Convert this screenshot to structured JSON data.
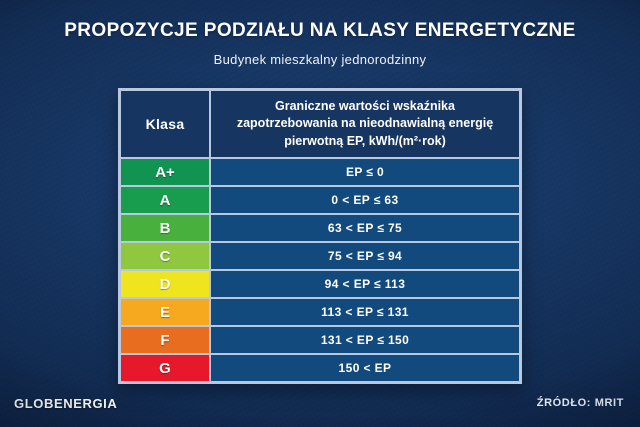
{
  "title": "PROPOZYCJE PODZIAŁU NA KLASY ENERGETYCZNE",
  "subtitle": "Budynek mieszkalny jednorodzinny",
  "table": {
    "col1_header": "Klasa",
    "col2_header": "Graniczne wartości wskaźnika zapotrzebowania na nieodnawialną energię pierwotną EP, kWh/(m²·rok)",
    "rows": [
      {
        "klasa": "A+",
        "range": "EP ≤ 0",
        "color": "#119351"
      },
      {
        "klasa": "A",
        "range": "0 < EP ≤ 63",
        "color": "#189c4e"
      },
      {
        "klasa": "B",
        "range": "63 < EP ≤ 75",
        "color": "#48b13d"
      },
      {
        "klasa": "C",
        "range": "75 < EP ≤ 94",
        "color": "#8fc73e"
      },
      {
        "klasa": "D",
        "range": "94 < EP ≤ 113",
        "color": "#efe51f"
      },
      {
        "klasa": "E",
        "range": "113 < EP ≤ 131",
        "color": "#f6a91e"
      },
      {
        "klasa": "F",
        "range": "131 < EP ≤ 150",
        "color": "#e96d1f"
      },
      {
        "klasa": "G",
        "range": "150 < EP",
        "color": "#e5192b"
      }
    ]
  },
  "footer": {
    "brand": "GLOBENERGIA",
    "source": "ŹRÓDŁO: MRIT"
  },
  "colors": {
    "background_center": "#1d4276",
    "background_edge": "#0a1b38",
    "header_cell": "#163560",
    "value_cell": "#134a7d",
    "table_border": "#b9c8de",
    "text": "#ffffff"
  },
  "chart_data": {
    "type": "table",
    "title": "PROPOZYCJE PODZIAŁU NA KLASY ENERGETYCZNE",
    "subtitle": "Budynek mieszkalny jednorodzinny",
    "columns": [
      "Klasa",
      "Graniczne wartości wskaźnika zapotrzebowania na nieodnawialną energię pierwotną EP, kWh/(m²·rok)"
    ],
    "rows": [
      [
        "A+",
        "EP ≤ 0"
      ],
      [
        "A",
        "0 < EP ≤ 63"
      ],
      [
        "B",
        "63 < EP ≤ 75"
      ],
      [
        "C",
        "75 < EP ≤ 94"
      ],
      [
        "D",
        "94 < EP ≤ 113"
      ],
      [
        "E",
        "113 < EP ≤ 131"
      ],
      [
        "F",
        "131 < EP ≤ 150"
      ],
      [
        "G",
        "150 < EP"
      ]
    ],
    "row_colors": [
      "#119351",
      "#189c4e",
      "#48b13d",
      "#8fc73e",
      "#efe51f",
      "#f6a91e",
      "#e96d1f",
      "#e5192b"
    ],
    "ep_thresholds": [
      0,
      63,
      75,
      94,
      113,
      131,
      150
    ],
    "unit": "kWh/(m²·rok)",
    "source": "ŹRÓDŁO: MRIT"
  }
}
